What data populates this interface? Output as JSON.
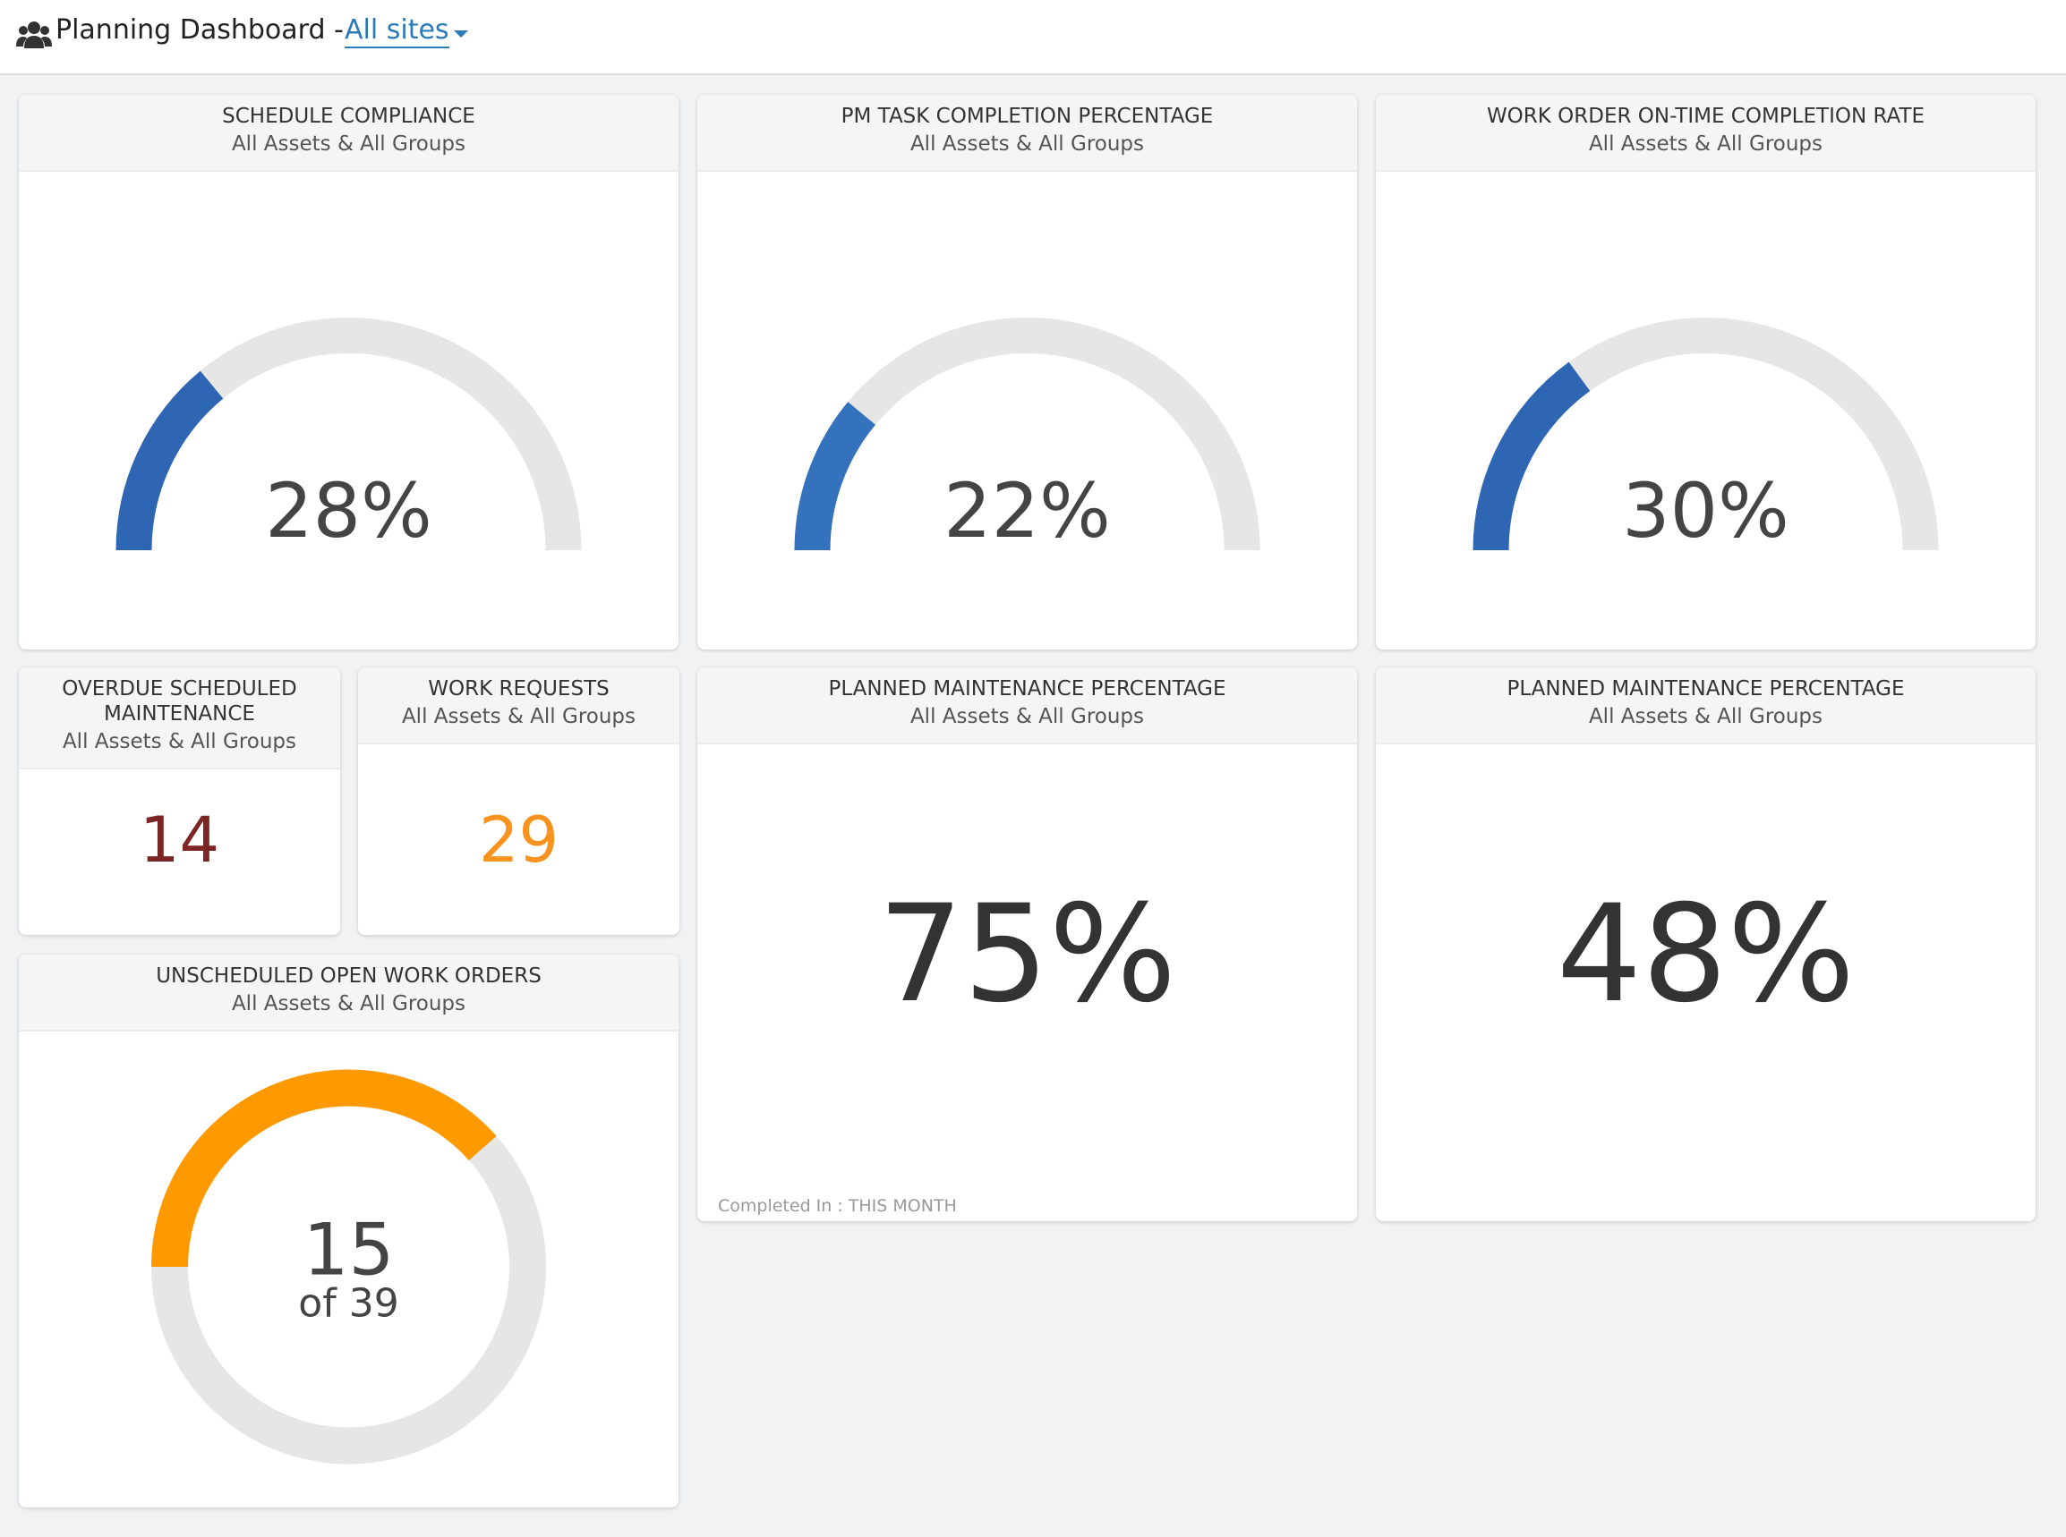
{
  "header": {
    "title": "Planning Dashboard -",
    "site_link": "All sites"
  },
  "widgets": [
    {
      "type": "gauge",
      "title": "SCHEDULE COMPLIANCE",
      "subtitle": "All Assets & All Groups",
      "value": 28,
      "value_label": "28%",
      "range": [
        0,
        100
      ],
      "color": "#2f66b3"
    },
    {
      "type": "gauge",
      "title": "PM TASK COMPLETION PERCENTAGE",
      "subtitle": "All Assets & All Groups",
      "value": 22,
      "value_label": "22%",
      "range": [
        0,
        100
      ],
      "color": "#3472bd"
    },
    {
      "type": "gauge",
      "title": "WORK ORDER ON-TIME COMPLETION RATE",
      "subtitle": "All Assets & All Groups",
      "value": 30,
      "value_label": "30%",
      "range": [
        0,
        100
      ],
      "color": "#2f66b3"
    },
    {
      "type": "number",
      "title": "OVERDUE SCHEDULED MAINTENANCE",
      "subtitle": "All Assets & All Groups",
      "value": 14,
      "color": "#7b2525"
    },
    {
      "type": "number",
      "title": "WORK REQUESTS",
      "subtitle": "All Assets & All Groups",
      "value": 29,
      "color": "#f7931e"
    },
    {
      "type": "big-number",
      "title": "PLANNED MAINTENANCE PERCENTAGE",
      "subtitle": "All Assets & All Groups",
      "value": 75,
      "value_label": "75%",
      "footnote": "Completed In : THIS MONTH",
      "color": "#333333"
    },
    {
      "type": "big-number",
      "title": "PLANNED MAINTENANCE PERCENTAGE",
      "subtitle": "All Assets & All Groups",
      "value": 48,
      "value_label": "48%",
      "color": "#333333"
    },
    {
      "type": "donut",
      "title": "UNSCHEDULED OPEN WORK ORDERS",
      "subtitle": "All Assets & All Groups",
      "value": 15,
      "total": 39,
      "total_label": "of 39",
      "color": "#ff9900"
    }
  ]
}
